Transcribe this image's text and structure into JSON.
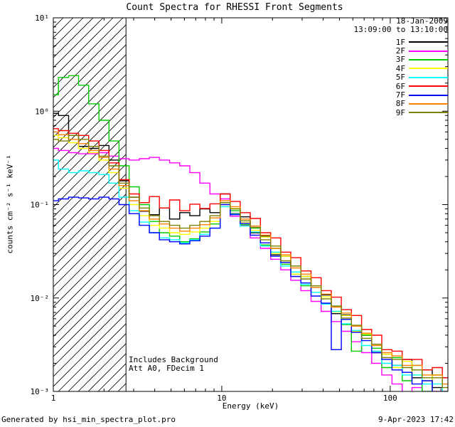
{
  "title": "Count Spectra for RHESSI Front Segments",
  "annotations": {
    "date": "18-Jan-2009",
    "time_range": "13:09:00 to 13:10:00",
    "background_note": "Includes Background",
    "att_note": "Att A0, FDecim 1"
  },
  "footer": {
    "left": "Generated by hsi_min_spectra_plot.pro",
    "right": "9-Apr-2023 17:42"
  },
  "axes": {
    "xlabel": "Energy (keV)",
    "ylabel": "counts cm⁻² s⁻¹ keV⁻¹",
    "x_ticks": [
      {
        "label": "1",
        "value": 1
      },
      {
        "label": "10",
        "value": 10
      },
      {
        "label": "100",
        "value": 100
      }
    ],
    "y_ticks": [
      {
        "label": "10¹",
        "value": 10
      },
      {
        "label": "10⁰",
        "value": 1
      },
      {
        "label": "10⁻¹",
        "value": 0.1
      },
      {
        "label": "10⁻²",
        "value": 0.01
      },
      {
        "label": "10⁻³",
        "value": 0.001
      }
    ]
  },
  "hatch_region": {
    "xmin": 1,
    "xmax": 2.7
  },
  "chart_data": {
    "type": "line",
    "style": "histogram-step",
    "log_x": true,
    "log_y": true,
    "xlim": [
      1,
      220
    ],
    "ylim": [
      0.001,
      10
    ],
    "title": "Count Spectra for RHESSI Front Segments",
    "xlabel": "Energy (keV)",
    "ylabel": "counts cm-2 s-1 keV-1",
    "legend_position": "top-right",
    "x": [
      1.0,
      1.15,
      1.32,
      1.51,
      1.74,
      2.0,
      2.29,
      2.63,
      3.02,
      3.47,
      3.98,
      4.57,
      5.25,
      6.03,
      6.92,
      7.94,
      9.12,
      10.5,
      12.0,
      13.8,
      15.8,
      18.2,
      20.9,
      24.0,
      27.5,
      31.6,
      36.3,
      41.7,
      47.9,
      54.9,
      63.1,
      72.4,
      83.2,
      95.5,
      110,
      126,
      144,
      166,
      190,
      219
    ],
    "series": [
      {
        "name": "1F",
        "color": "#000000",
        "values": [
          0.95,
          0.9,
          0.55,
          0.42,
          0.4,
          0.43,
          0.3,
          0.18,
          0.12,
          0.085,
          0.078,
          0.092,
          0.07,
          0.082,
          0.076,
          0.09,
          0.082,
          0.13,
          0.08,
          0.074,
          0.05,
          0.046,
          0.029,
          0.028,
          0.018,
          0.017,
          0.0115,
          0.0108,
          0.0068,
          0.0066,
          0.0044,
          0.004,
          0.0026,
          0.0025,
          0.0019,
          0.0022,
          0.0014,
          0.0017,
          0.0011,
          0.0014
        ]
      },
      {
        "name": "2F",
        "color": "#ff00ff",
        "values": [
          0.4,
          0.38,
          0.36,
          0.35,
          0.35,
          0.36,
          0.33,
          0.31,
          0.3,
          0.31,
          0.32,
          0.3,
          0.28,
          0.26,
          0.22,
          0.17,
          0.13,
          0.115,
          0.075,
          0.06,
          0.044,
          0.034,
          0.026,
          0.02,
          0.0155,
          0.012,
          0.0092,
          0.0072,
          0.0056,
          0.0044,
          0.0034,
          0.0026,
          0.002,
          0.0015,
          0.0012,
          0.00085,
          0.0011,
          0.00075,
          0.001,
          0.00065
        ]
      },
      {
        "name": "3F",
        "color": "#00cc00",
        "values": [
          1.5,
          2.3,
          2.4,
          1.9,
          1.2,
          0.8,
          0.48,
          0.26,
          0.155,
          0.1,
          0.066,
          0.05,
          0.046,
          0.04,
          0.043,
          0.051,
          0.062,
          0.105,
          0.086,
          0.061,
          0.056,
          0.037,
          0.034,
          0.023,
          0.022,
          0.0135,
          0.013,
          0.0086,
          0.0082,
          0.0052,
          0.0027,
          0.004,
          0.0029,
          0.0018,
          0.0023,
          0.0013,
          0.0019,
          0.001,
          0.0015,
          0.0008
        ]
      },
      {
        "name": "4F",
        "color": "#ffff00",
        "values": [
          0.55,
          0.52,
          0.46,
          0.4,
          0.36,
          0.3,
          0.22,
          0.15,
          0.1,
          0.076,
          0.06,
          0.056,
          0.05,
          0.048,
          0.051,
          0.056,
          0.066,
          0.1,
          0.091,
          0.064,
          0.053,
          0.045,
          0.03,
          0.028,
          0.018,
          0.017,
          0.0115,
          0.0103,
          0.0071,
          0.0065,
          0.0044,
          0.0041,
          0.0027,
          0.0025,
          0.0018,
          0.0021,
          0.0015,
          0.0013,
          0.0015,
          0.001
        ]
      },
      {
        "name": "5F",
        "color": "#00ffff",
        "values": [
          0.3,
          0.24,
          0.22,
          0.23,
          0.22,
          0.21,
          0.17,
          0.12,
          0.086,
          0.065,
          0.05,
          0.044,
          0.042,
          0.039,
          0.042,
          0.048,
          0.056,
          0.095,
          0.079,
          0.059,
          0.051,
          0.036,
          0.031,
          0.022,
          0.019,
          0.014,
          0.0115,
          0.0086,
          0.0072,
          0.0053,
          0.0045,
          0.0031,
          0.0027,
          0.002,
          0.0019,
          0.0015,
          0.0015,
          0.0012,
          0.0012,
          0.0009
        ]
      },
      {
        "name": "6F",
        "color": "#ff0000",
        "values": [
          0.65,
          0.62,
          0.58,
          0.55,
          0.48,
          0.38,
          0.28,
          0.185,
          0.13,
          0.105,
          0.122,
          0.092,
          0.112,
          0.086,
          0.101,
          0.091,
          0.102,
          0.13,
          0.108,
          0.082,
          0.071,
          0.05,
          0.044,
          0.031,
          0.027,
          0.0195,
          0.0165,
          0.012,
          0.0102,
          0.0075,
          0.0065,
          0.0046,
          0.004,
          0.0028,
          0.0027,
          0.0022,
          0.0022,
          0.0017,
          0.0018,
          0.0014
        ]
      },
      {
        "name": "7F",
        "color": "#0000ff",
        "values": [
          0.11,
          0.115,
          0.12,
          0.118,
          0.115,
          0.12,
          0.115,
          0.1,
          0.08,
          0.06,
          0.05,
          0.042,
          0.04,
          0.038,
          0.041,
          0.046,
          0.056,
          0.1,
          0.078,
          0.063,
          0.047,
          0.039,
          0.028,
          0.024,
          0.017,
          0.0145,
          0.0105,
          0.0088,
          0.0028,
          0.0059,
          0.0043,
          0.0035,
          0.0026,
          0.0022,
          0.0017,
          0.0016,
          0.0012,
          0.0013,
          0.0009,
          0.001
        ]
      },
      {
        "name": "8F",
        "color": "#ff8000",
        "values": [
          0.6,
          0.56,
          0.5,
          0.45,
          0.38,
          0.32,
          0.24,
          0.16,
          0.11,
          0.086,
          0.07,
          0.062,
          0.056,
          0.052,
          0.056,
          0.061,
          0.072,
          0.11,
          0.095,
          0.07,
          0.059,
          0.047,
          0.034,
          0.029,
          0.021,
          0.018,
          0.013,
          0.011,
          0.008,
          0.0069,
          0.005,
          0.0042,
          0.0031,
          0.0026,
          0.0024,
          0.0019,
          0.0019,
          0.0015,
          0.0015,
          0.0012
        ]
      },
      {
        "name": "9F",
        "color": "#7f7f00",
        "values": [
          0.5,
          0.48,
          0.55,
          0.5,
          0.42,
          0.33,
          0.26,
          0.17,
          0.12,
          0.092,
          0.076,
          0.066,
          0.06,
          0.056,
          0.06,
          0.066,
          0.076,
          0.105,
          0.09,
          0.067,
          0.057,
          0.042,
          0.036,
          0.025,
          0.022,
          0.016,
          0.0135,
          0.0098,
          0.0082,
          0.0061,
          0.0051,
          0.0037,
          0.0032,
          0.0023,
          0.0022,
          0.0018,
          0.0017,
          0.0014,
          0.0014,
          0.0011
        ]
      }
    ]
  }
}
